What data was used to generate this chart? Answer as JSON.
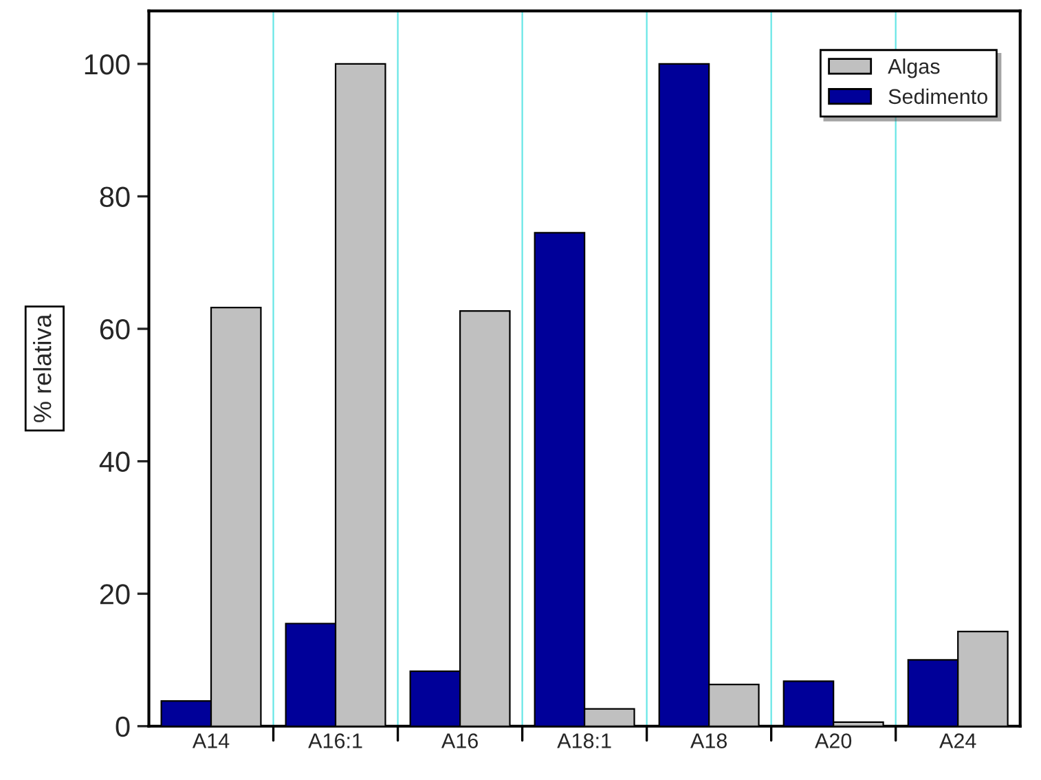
{
  "chart_data": {
    "type": "bar",
    "ylabel": "% relativa",
    "categories": [
      "A14",
      "A16:1",
      "A16",
      "A18:1",
      "A18",
      "A20",
      "A24"
    ],
    "series": [
      {
        "name": "Sedimento",
        "color": "#000099",
        "values": [
          3.8,
          15.5,
          8.3,
          74.5,
          100,
          6.8,
          10
        ]
      },
      {
        "name": "Algas",
        "color": "#c0c0c0",
        "values": [
          63.2,
          100,
          62.7,
          2.6,
          6.3,
          0.6,
          14.3
        ]
      }
    ],
    "ylim": [
      0,
      108
    ],
    "yticks": [
      0,
      20,
      40,
      60,
      80,
      100
    ],
    "grid": "x",
    "legend": "top right"
  }
}
